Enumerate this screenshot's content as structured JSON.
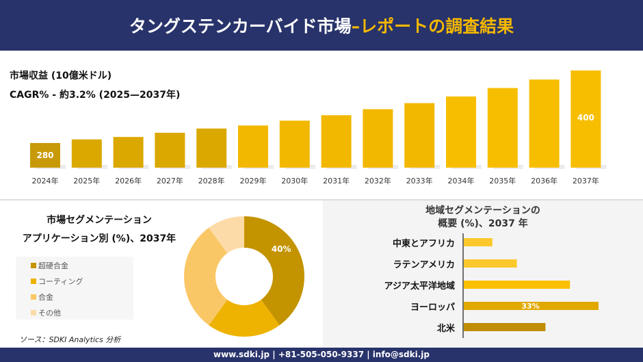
{
  "header": {
    "title_main": "タングステンカーバイド市場",
    "title_accent": "–レポートの調査結果"
  },
  "revenue": {
    "label": "市場収益 (10億米ドル)",
    "cagr": "CAGR% - 約3.2% (2025—2037年)"
  },
  "chart_data": [
    {
      "type": "bar",
      "categories": [
        "2024年",
        "2025年",
        "2026年",
        "2027年",
        "2028年",
        "2029年",
        "2030年",
        "2031年",
        "2032年",
        "2033年",
        "2034年",
        "2035年",
        "2036年",
        "2037年"
      ],
      "values": [
        280,
        286,
        290,
        297,
        304,
        309,
        317,
        326,
        336,
        346,
        357,
        371,
        385,
        400
      ],
      "data_labels": {
        "2024年": "280",
        "2037年": "400"
      },
      "colors": [
        "#c89a0a",
        "#f5b800"
      ]
    },
    {
      "type": "pie",
      "title": "市場セグメンテーション アプリケーション別 (%)、2037年",
      "categories": [
        "超硬合金",
        "コーティング",
        "合金",
        "その他"
      ],
      "values": [
        40,
        20,
        30,
        10
      ],
      "colors": [
        "#c49300",
        "#eeb200",
        "#fac766",
        "#fddba8"
      ],
      "data_labels": {
        "超硬合金": "40%"
      },
      "legend": "left"
    },
    {
      "type": "bar",
      "orientation": "horizontal",
      "title": "地域セグメンテーションの 概要 (%)、2037 年",
      "categories": [
        "中東とアフリカ",
        "ラテンアメリカ",
        "アジア太平洋地域",
        "ヨーロッパ",
        "北米"
      ],
      "values": [
        7,
        13,
        26,
        33,
        20
      ],
      "colors": [
        "#fcc82c",
        "#fcc82c",
        "#fcc000",
        "#e1a900",
        "#bf8e06"
      ],
      "data_labels": {
        "ヨーロッパ": "33%"
      }
    }
  ],
  "segment": {
    "title1": "市場セグメンテーション",
    "title2": "アプリケーション別 (%)、2037年"
  },
  "region": {
    "title1": "地域セグメンテーションの",
    "title2": "概要 (%)、2037 年"
  },
  "source": "ソース：SDKI Analytics 分析",
  "footer": "www.sdki.jp | +81-505-050-9337 | info@sdki.jp"
}
